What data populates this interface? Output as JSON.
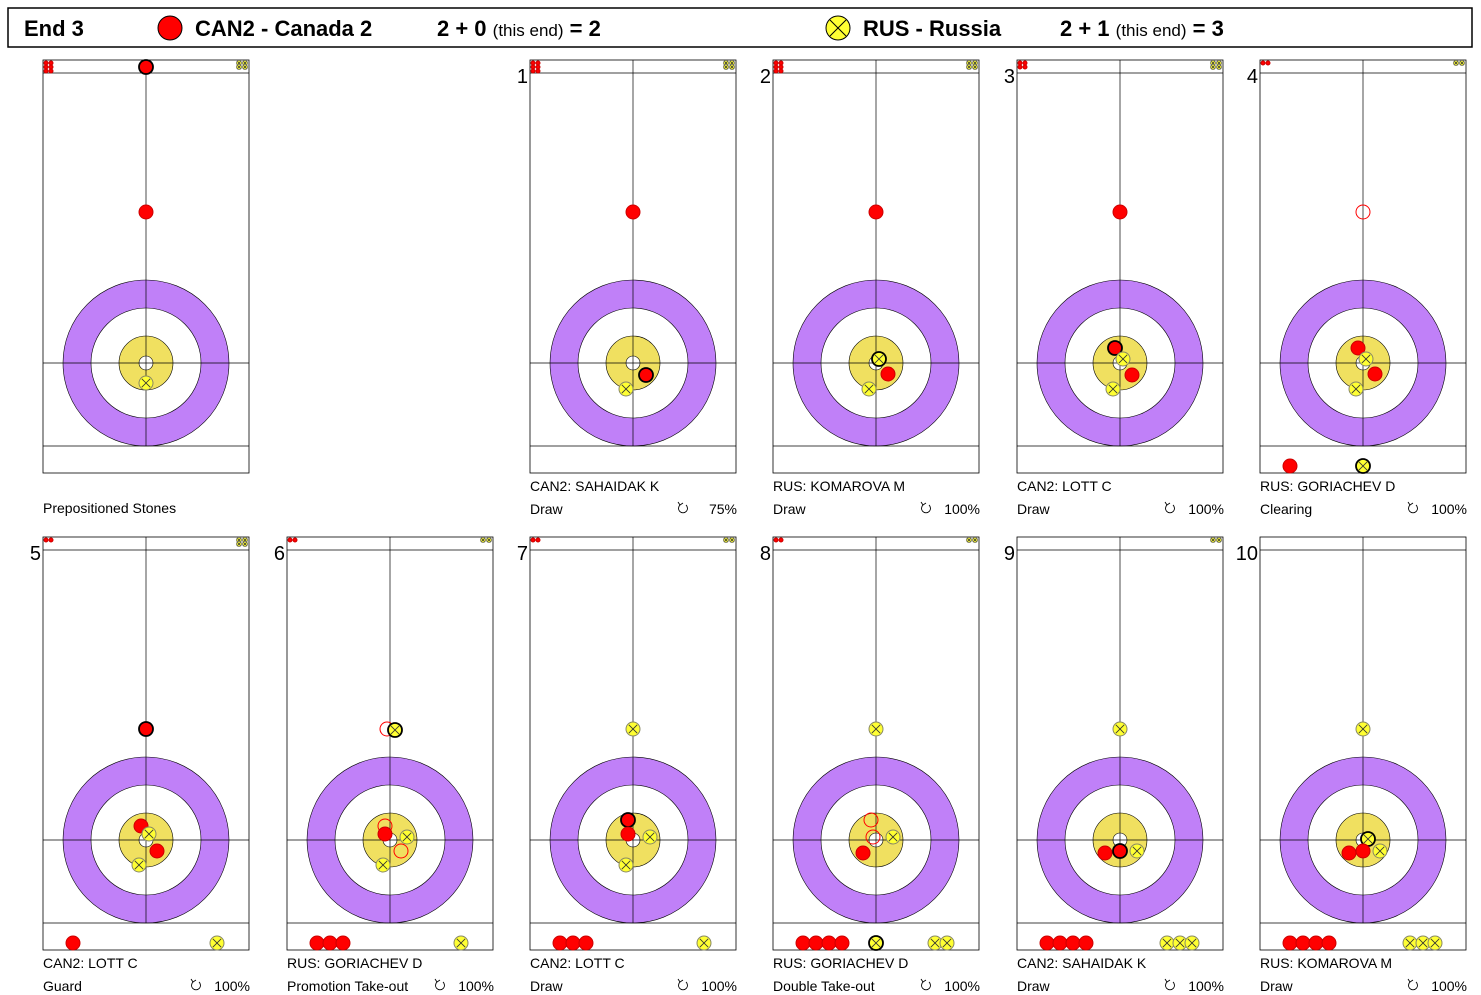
{
  "header": {
    "end": "End 3",
    "team1": "CAN2 - Canada 2",
    "score1": "2 + 0",
    "note1": "(this end)",
    "total1": "= 2",
    "team2": "RUS - Russia",
    "score2": "2 + 1",
    "note2": "(this end)",
    "total2": "= 3"
  },
  "panels": [
    {
      "label": "Prepositioned Stones"
    },
    {
      "number": 1,
      "player": "CAN2: SAHAIDAK K",
      "shot": "Draw",
      "percent": "75%"
    },
    {
      "number": 2,
      "player": "RUS: KOMAROVA M",
      "shot": "Draw",
      "percent": "100%"
    },
    {
      "number": 3,
      "player": "CAN2: LOTT C",
      "shot": "Draw",
      "percent": "100%"
    },
    {
      "number": 4,
      "player": "RUS: GORIACHEV D",
      "shot": "Clearing",
      "percent": "100%"
    },
    {
      "number": 5,
      "player": "CAN2: LOTT C",
      "shot": "Guard",
      "percent": "100%"
    },
    {
      "number": 6,
      "player": "RUS: GORIACHEV D",
      "shot": "Promotion Take-out",
      "percent": "100%"
    },
    {
      "number": 7,
      "player": "CAN2: LOTT C",
      "shot": "Draw",
      "percent": "100%"
    },
    {
      "number": 8,
      "player": "RUS: GORIACHEV D",
      "shot": "Double Take-out",
      "percent": "100%"
    },
    {
      "number": 9,
      "player": "CAN2: SAHAIDAK K",
      "shot": "Draw",
      "percent": "100%"
    },
    {
      "number": 10,
      "player": "RUS: KOMAROVA M",
      "shot": "Draw",
      "percent": "100%"
    }
  ]
}
